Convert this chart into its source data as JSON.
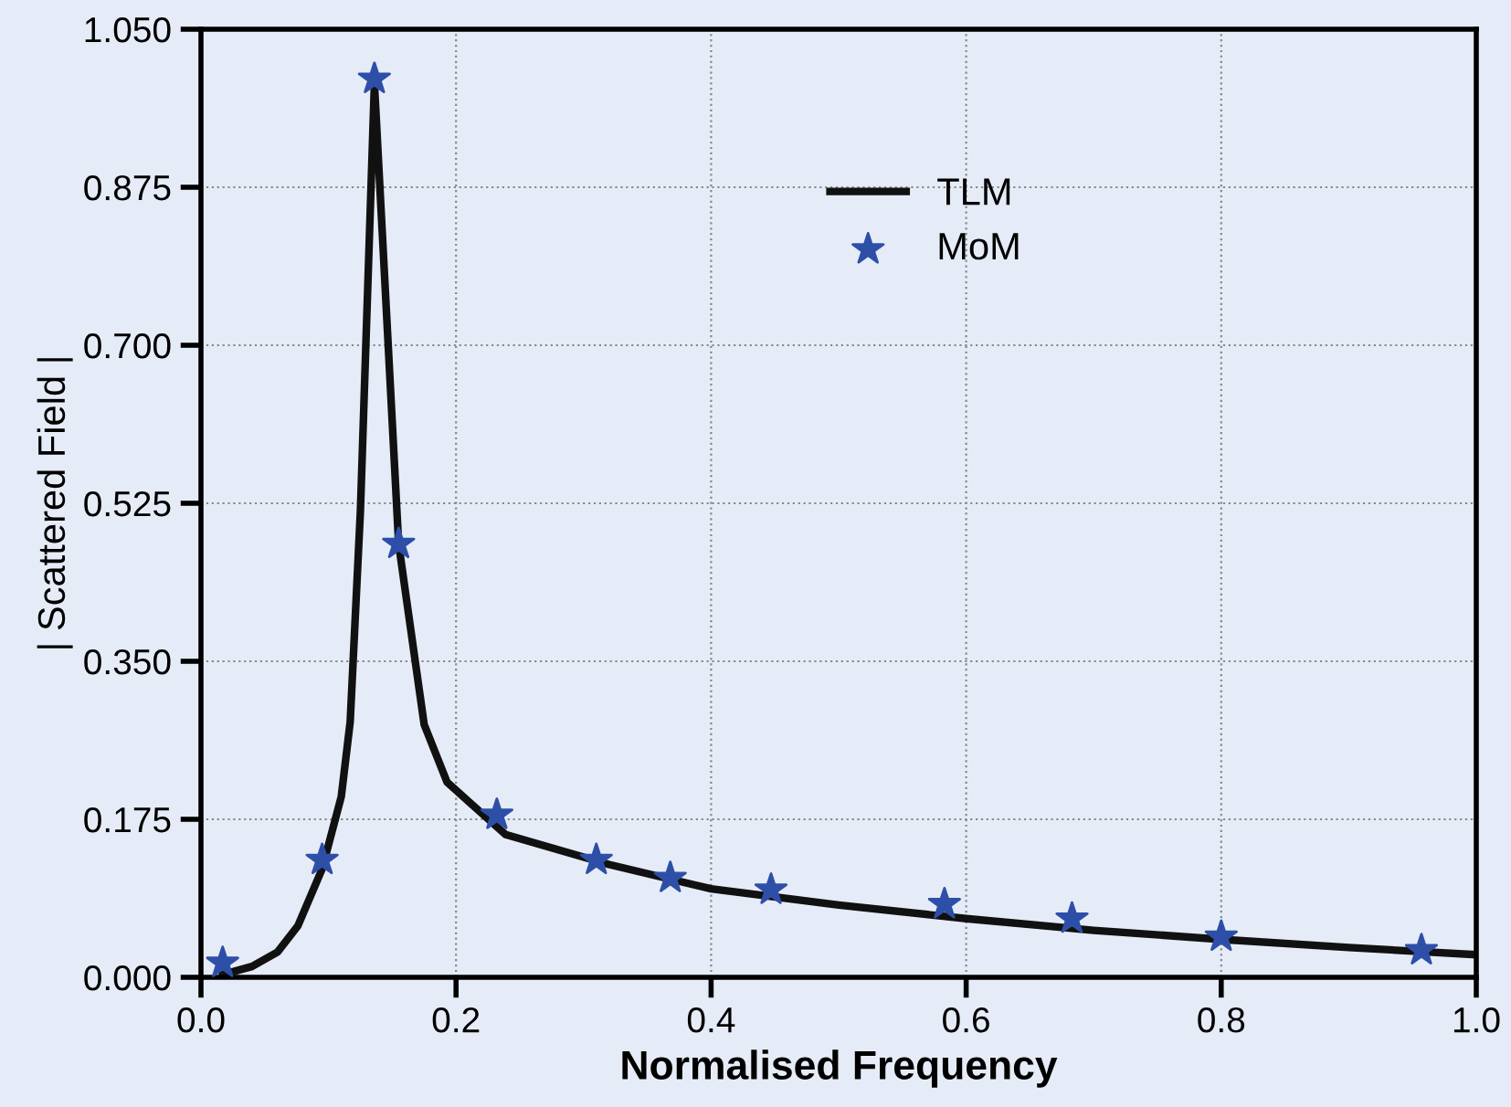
{
  "chart_data": {
    "type": "line",
    "xlabel": "Normalised Frequency",
    "ylabel": "| Scattered Field |",
    "xlim": [
      0.0,
      1.0
    ],
    "ylim": [
      0.0,
      1.05
    ],
    "xticks": [
      {
        "value": 0.0,
        "label": "0.0"
      },
      {
        "value": 0.2,
        "label": "0.2"
      },
      {
        "value": 0.4,
        "label": "0.4"
      },
      {
        "value": 0.6,
        "label": "0.6"
      },
      {
        "value": 0.8,
        "label": "0.8"
      },
      {
        "value": 1.0,
        "label": "1.0"
      }
    ],
    "yticks": [
      {
        "value": 0.0,
        "label": "0.000"
      },
      {
        "value": 0.175,
        "label": "0.175"
      },
      {
        "value": 0.35,
        "label": "0.350"
      },
      {
        "value": 0.525,
        "label": "0.525"
      },
      {
        "value": 0.7,
        "label": "0.700"
      },
      {
        "value": 0.875,
        "label": "0.875"
      },
      {
        "value": 1.05,
        "label": "1.050"
      }
    ],
    "grid": true,
    "legend": "top right",
    "series": [
      {
        "name": "TLM",
        "color": "#111111",
        "marker": "none",
        "line_style": "solid",
        "x": [
          0.017,
          0.04,
          0.06,
          0.076,
          0.095,
          0.11,
          0.117,
          0.125,
          0.136,
          0.155,
          0.175,
          0.193,
          0.239,
          0.32,
          0.4,
          0.5,
          0.6,
          0.7,
          0.8,
          0.9,
          1.0
        ],
        "values": [
          0.003,
          0.012,
          0.028,
          0.057,
          0.12,
          0.2,
          0.283,
          0.516,
          0.99,
          0.48,
          0.28,
          0.216,
          0.158,
          0.125,
          0.098,
          0.08,
          0.065,
          0.052,
          0.042,
          0.033,
          0.025
        ]
      },
      {
        "name": "MoM",
        "type": "scatter",
        "color": "#2e4fa8",
        "marker": "star",
        "x": [
          0.017,
          0.095,
          0.136,
          0.155,
          0.232,
          0.31,
          0.368,
          0.447,
          0.583,
          0.683,
          0.8,
          0.957
        ],
        "values": [
          0.016,
          0.13,
          0.995,
          0.48,
          0.18,
          0.13,
          0.11,
          0.097,
          0.081,
          0.065,
          0.045,
          0.03
        ]
      }
    ]
  }
}
